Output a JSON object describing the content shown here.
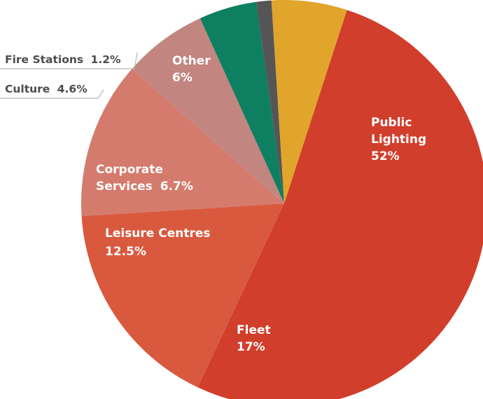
{
  "chart_data": {
    "type": "pie",
    "slices": [
      {
        "label_lines": [
          "Public",
          "Lighting"
        ],
        "value_text": "52%",
        "value": 52,
        "color": "#d13e2b"
      },
      {
        "label_lines": [
          "Fleet"
        ],
        "value_text": "17%",
        "value": 17,
        "color": "#d9593f"
      },
      {
        "label_lines": [
          "Leisure Centres"
        ],
        "value_text": "12.5%",
        "value": 12.5,
        "color": "#d47b6d"
      },
      {
        "label_lines": [
          "Corporate",
          "Services"
        ],
        "value_text": "6.7%",
        "value": 6.7,
        "color": "#c28580"
      },
      {
        "label_lines": [
          "Culture"
        ],
        "value_text": "4.6%",
        "value": 4.6,
        "color": "#0f7f62"
      },
      {
        "label_lines": [
          "Fire Stations"
        ],
        "value_text": "1.2%",
        "value": 1.2,
        "color": "#555555"
      },
      {
        "label_lines": [
          "Other"
        ],
        "value_text": "6%",
        "value": 6,
        "color": "#e0a52a"
      }
    ]
  }
}
